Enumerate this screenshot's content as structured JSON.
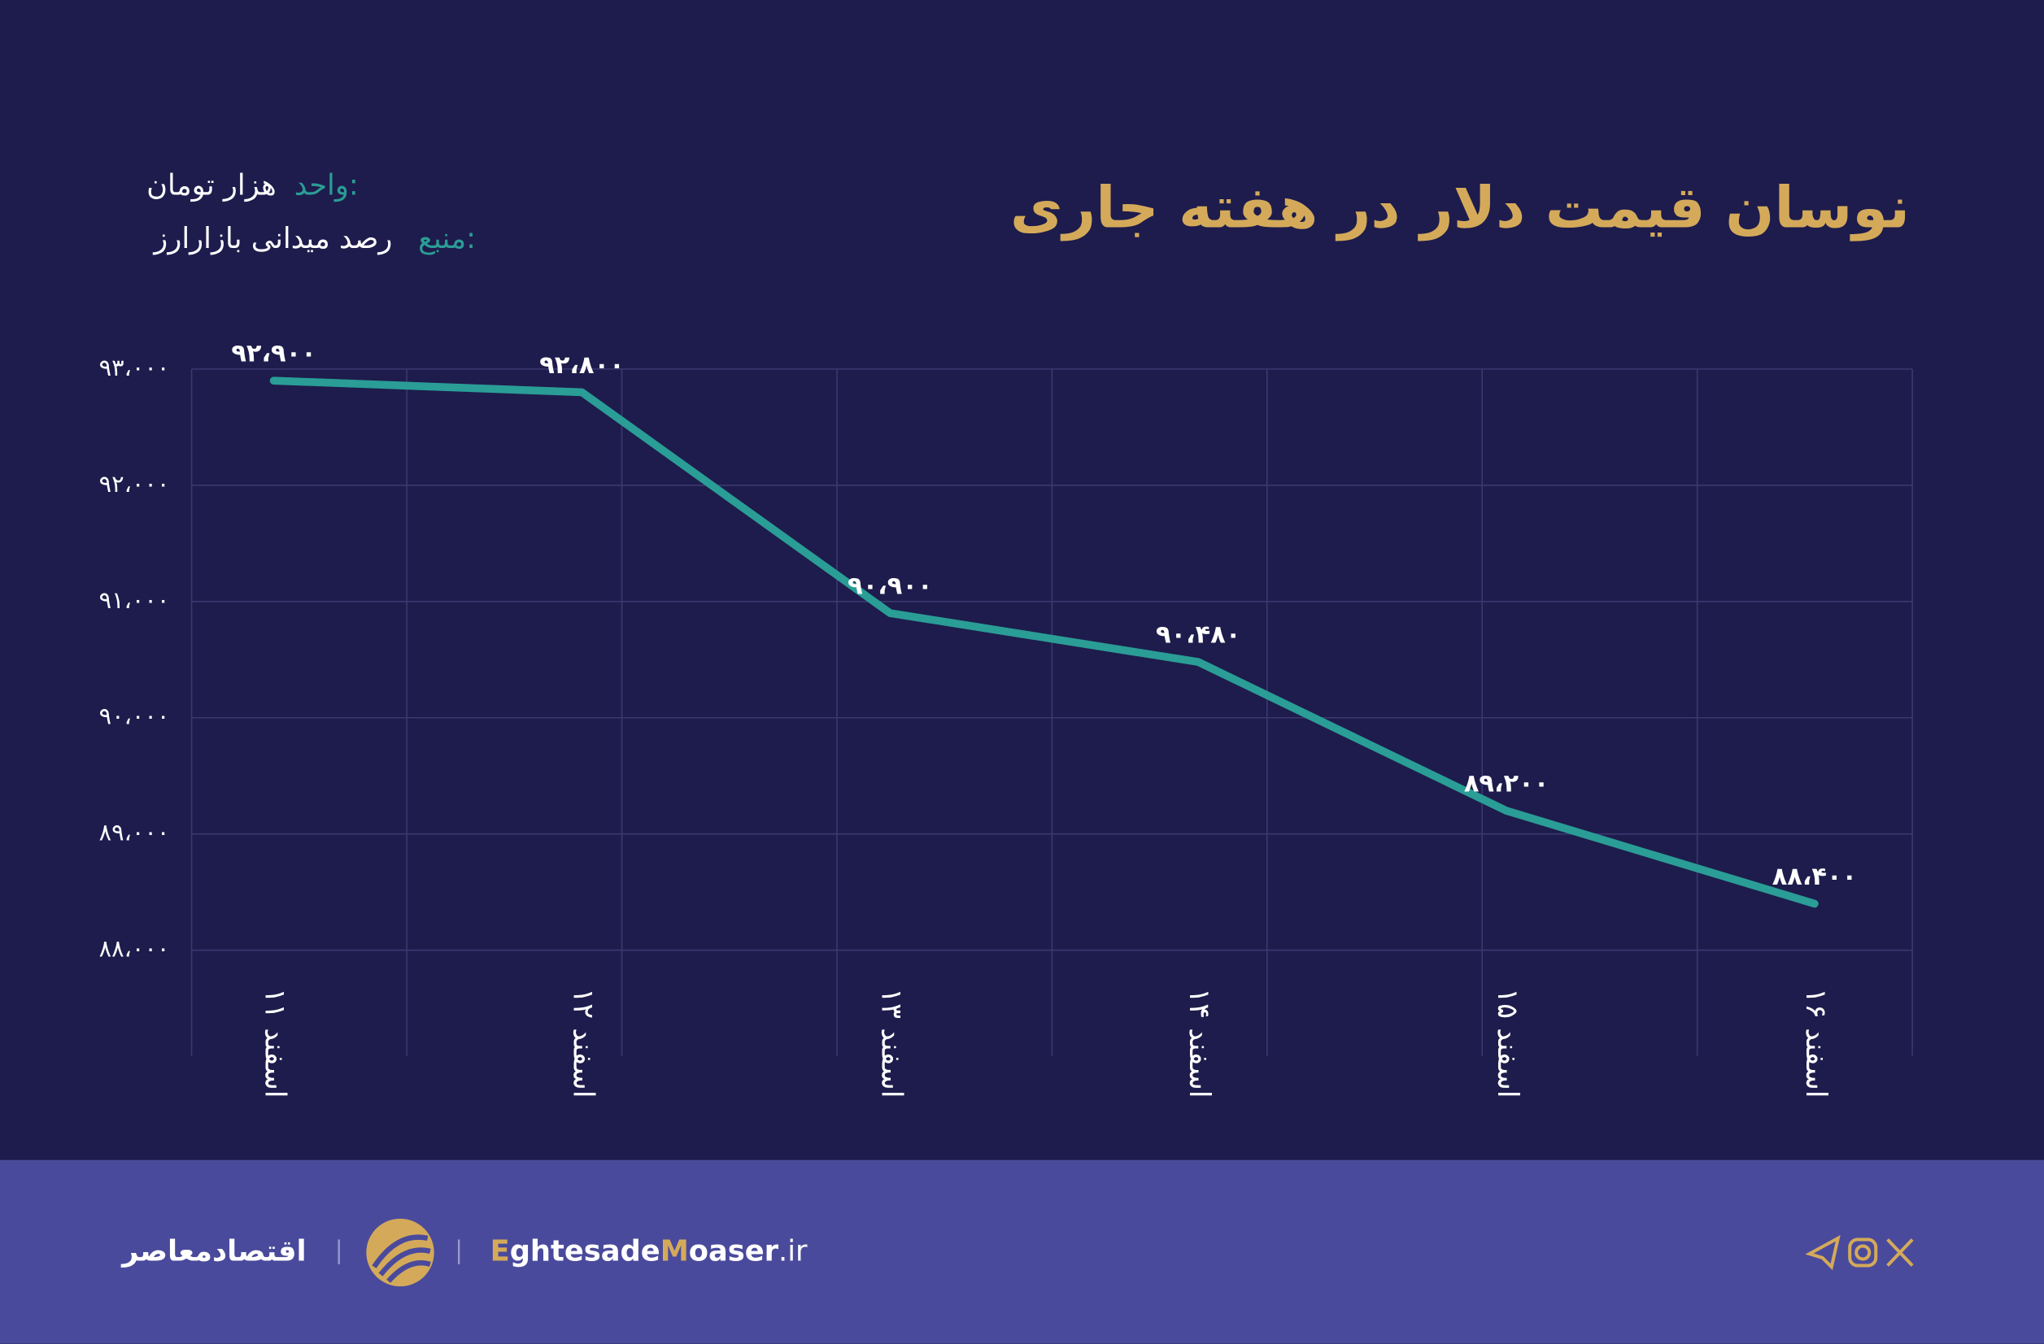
{
  "chart_data": {
    "type": "line",
    "title": "نوسان قیمت دلار در هفته جاری",
    "unit_label": "واحد:",
    "unit": "هزار تومان",
    "source_label": "منبع:",
    "source": "رصد میدانی بازارارز",
    "categories": [
      "۱۱ اسفند",
      "۱۲ اسفند",
      "۱۳ اسفند",
      "۱۴ اسفند",
      "۱۵ اسفند",
      "۱۶ اسفند"
    ],
    "series": [
      {
        "name": "دلار",
        "color": "#2a9d96",
        "values": [
          92900,
          92800,
          90900,
          90480,
          89200,
          88400
        ],
        "value_labels": [
          "۹۲،۹۰۰",
          "۹۲،۸۰۰",
          "۹۰،۹۰۰",
          "۹۰،۴۸۰",
          "۸۹،۲۰۰",
          "۸۸،۴۰۰"
        ]
      }
    ],
    "ylim": [
      88000,
      93000
    ],
    "yticks": [
      {
        "value": 88000,
        "label": "۸۸،۰۰۰"
      },
      {
        "value": 89000,
        "label": "۸۹،۰۰۰"
      },
      {
        "value": 90000,
        "label": "۹۰،۰۰۰"
      },
      {
        "value": 91000,
        "label": "۹۱،۰۰۰"
      },
      {
        "value": 92000,
        "label": "۹۲،۰۰۰"
      },
      {
        "value": 93000,
        "label": "۹۳،۰۰۰"
      }
    ],
    "grid": true
  },
  "footer": {
    "brand": "اقتصادمعاصر",
    "site": [
      "E",
      "ghtesade",
      "M",
      "oaser",
      ".ir"
    ]
  }
}
